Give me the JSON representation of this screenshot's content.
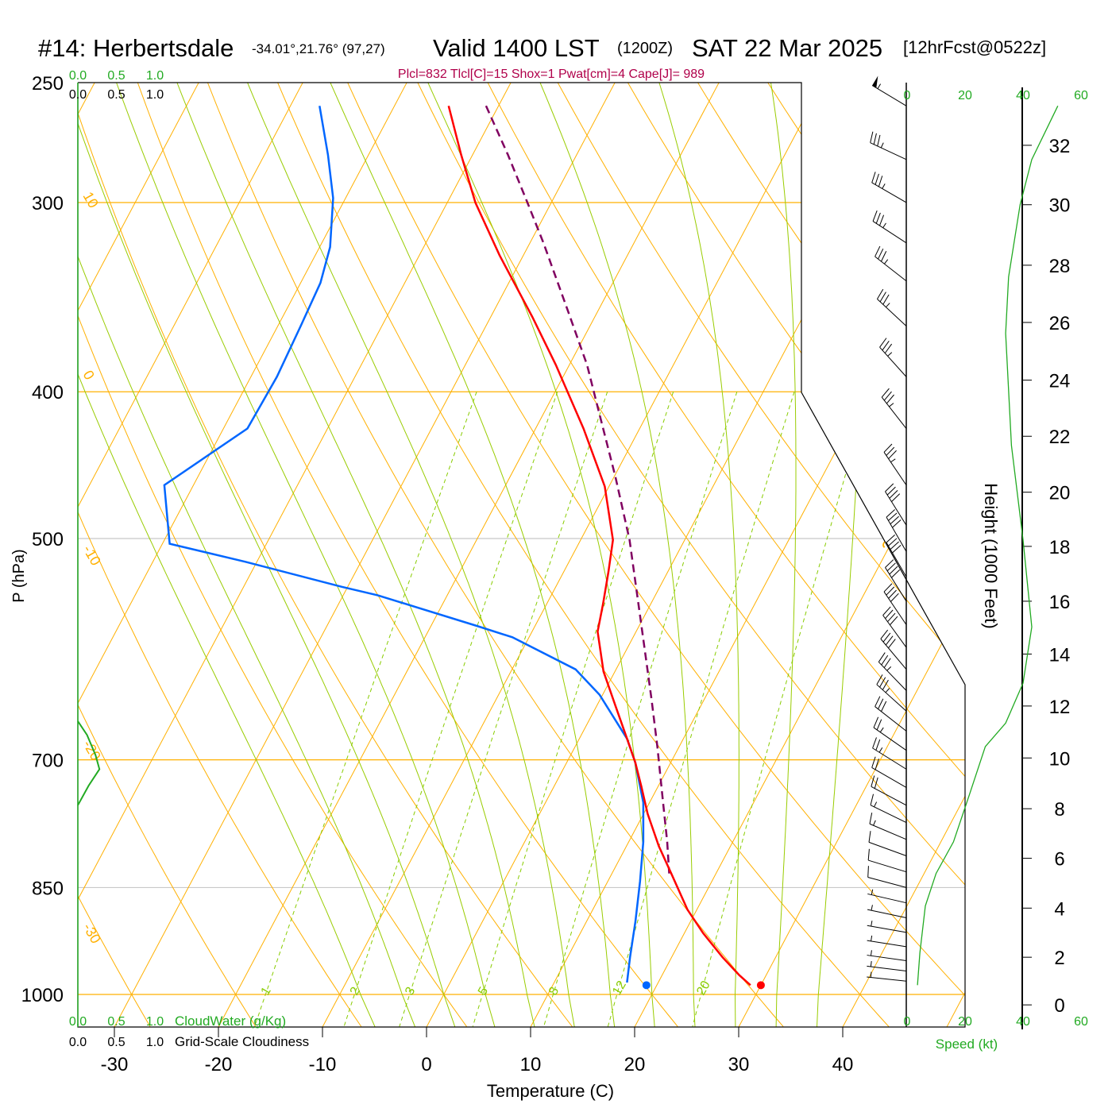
{
  "title": {
    "station": "#14: Herbertsdale",
    "coords": "-34.01°,21.76° (97,27)",
    "valid": "Valid 1400 LST",
    "utc": "(1200Z)",
    "date": "SAT 22 Mar 2025",
    "forecast": "[12hrFcst@0522z]"
  },
  "indices": "Plcl=832 Tlcl[C]=15 Shox=1 Pwat[cm]=4 Cape[J]= 989",
  "colors": {
    "temperature": "#ff0000",
    "dewpoint": "#0066ff",
    "parcel": "#800060",
    "isotherm": "#ffb000",
    "moist_adiabat": "#99cc00",
    "mixing_ratio": "#88cc00",
    "speed": "#22aa22",
    "cloud": "#22aa22"
  },
  "chart_data": {
    "type": "line",
    "title": "#14: Herbertsdale Valid 1400 LST (1200Z) SAT 22 Mar 2025",
    "xlabel": "Temperature (C)",
    "ylabel": "P (hPa)",
    "y2label": "Height (1000 Feet)",
    "speed_label": "Speed (kt)",
    "cloudwater_label": "CloudWater (g/Kg)",
    "cloudiness_label": "Grid-Scale Cloudiness",
    "pressure_range": [
      250,
      1050
    ],
    "temperature_range": [
      -34,
      52
    ],
    "pressure_ticks": [
      250,
      300,
      400,
      500,
      700,
      850,
      1000
    ],
    "temperature_ticks": [
      -30,
      -20,
      -10,
      0,
      10,
      20,
      30,
      40
    ],
    "cloud_ticks": [
      "0.0",
      "0.5",
      "1.0"
    ],
    "speed_ticks": [
      "0",
      "20",
      "40",
      "60"
    ],
    "height_ticks": [
      {
        "label": "32",
        "p": 275
      },
      {
        "label": "30",
        "p": 301
      },
      {
        "label": "28",
        "p": 330
      },
      {
        "label": "26",
        "p": 360
      },
      {
        "label": "24",
        "p": 393
      },
      {
        "label": "22",
        "p": 428
      },
      {
        "label": "20",
        "p": 466
      },
      {
        "label": "18",
        "p": 506
      },
      {
        "label": "16",
        "p": 550
      },
      {
        "label": "14",
        "p": 596
      },
      {
        "label": "12",
        "p": 645
      },
      {
        "label": "10",
        "p": 698
      },
      {
        "label": "8",
        "p": 754
      },
      {
        "label": "6",
        "p": 813
      },
      {
        "label": "4",
        "p": 877
      },
      {
        "label": "2",
        "p": 945
      },
      {
        "label": "0",
        "p": 1016
      }
    ],
    "isotherm_labels": [
      {
        "label": "0",
        "T": 0,
        "p": 327
      },
      {
        "label": "10",
        "T": 10,
        "p": 425
      },
      {
        "label": "20",
        "T": 20,
        "p": 502
      },
      {
        "label": "30",
        "T": 30,
        "p": 575
      }
    ],
    "dry_adiabat_labels": [
      {
        "label": "10",
        "p": 298
      },
      {
        "label": "0",
        "p": 391
      },
      {
        "label": "-10",
        "p": 510
      },
      {
        "label": "-20",
        "p": 686
      },
      {
        "label": "-30",
        "p": 906
      }
    ],
    "mixing_ratio_labels": [
      "1",
      "2",
      "3",
      "5",
      "8",
      "12",
      "20"
    ],
    "series": [
      {
        "name": "Temperature",
        "points": [
          [
            259,
            -44.8
          ],
          [
            279,
            -41.1
          ],
          [
            300,
            -37.3
          ],
          [
            325,
            -32.3
          ],
          [
            357,
            -26.0
          ],
          [
            384,
            -21.3
          ],
          [
            423,
            -15.4
          ],
          [
            462,
            -10.4
          ],
          [
            501,
            -6.9
          ],
          [
            526,
            -5.7
          ],
          [
            552,
            -4.6
          ],
          [
            576,
            -3.7
          ],
          [
            612,
            -1.1
          ],
          [
            646,
            1.9
          ],
          [
            678,
            4.6
          ],
          [
            703,
            6.6
          ],
          [
            729,
            8.4
          ],
          [
            760,
            10.4
          ],
          [
            798,
            13.1
          ],
          [
            832,
            15.7
          ],
          [
            879,
            19.1
          ],
          [
            911,
            21.8
          ],
          [
            945,
            24.9
          ],
          [
            971,
            27.4
          ],
          [
            986,
            29.0
          ]
        ]
      },
      {
        "name": "Dewpoint",
        "points": [
          [
            259,
            -57.2
          ],
          [
            279,
            -53.9
          ],
          [
            298,
            -51.2
          ],
          [
            321,
            -49.0
          ],
          [
            339,
            -48.1
          ],
          [
            362,
            -47.8
          ],
          [
            391,
            -47.5
          ],
          [
            423,
            -47.7
          ],
          [
            461,
            -52.8
          ],
          [
            504,
            -49.3
          ],
          [
            518,
            -41.1
          ],
          [
            538,
            -30.6
          ],
          [
            545,
            -26.7
          ],
          [
            571,
            -15.6
          ],
          [
            581,
            -11.6
          ],
          [
            610,
            -3.9
          ],
          [
            634,
            -0.3
          ],
          [
            678,
            4.6
          ],
          [
            703,
            6.6
          ],
          [
            747,
            9.4
          ],
          [
            793,
            11.4
          ],
          [
            842,
            13.1
          ],
          [
            895,
            14.7
          ],
          [
            945,
            16.0
          ],
          [
            982,
            17.0
          ]
        ]
      },
      {
        "name": "Parcel",
        "points": [
          [
            259,
            -41.2
          ],
          [
            279,
            -36.6
          ],
          [
            300,
            -32.3
          ],
          [
            319,
            -28.7
          ],
          [
            353,
            -23.0
          ],
          [
            384,
            -18.3
          ],
          [
            413,
            -14.7
          ],
          [
            455,
            -9.9
          ],
          [
            501,
            -5.3
          ],
          [
            572,
            0.3
          ],
          [
            638,
            4.9
          ],
          [
            686,
            7.9
          ],
          [
            747,
            11.3
          ],
          [
            793,
            13.7
          ],
          [
            832,
            15.5
          ]
        ]
      },
      {
        "name": "Wind Speed (kt)",
        "points": [
          [
            259,
            52
          ],
          [
            281,
            43
          ],
          [
            301,
            39
          ],
          [
            336,
            35
          ],
          [
            366,
            34
          ],
          [
            434,
            36
          ],
          [
            501,
            40
          ],
          [
            572,
            43
          ],
          [
            623,
            40
          ],
          [
            662,
            34
          ],
          [
            686,
            27
          ],
          [
            738,
            21.5
          ],
          [
            793,
            16
          ],
          [
            832,
            10
          ],
          [
            874,
            6.3
          ],
          [
            939,
            4.4
          ],
          [
            986,
            3.6
          ]
        ]
      },
      {
        "name": "Cloud Water (g/Kg)",
        "points": [
          [
            660,
            0
          ],
          [
            674,
            0.12
          ],
          [
            695,
            0.23
          ],
          [
            710,
            0.28
          ],
          [
            728,
            0.14
          ],
          [
            750,
            0
          ]
        ]
      }
    ],
    "surface": {
      "p": 986,
      "temperature": 30,
      "dewpoint": 19
    },
    "wind_barbs": [
      {
        "p": 259,
        "dir": 301,
        "spd": 55
      },
      {
        "p": 281,
        "dir": 295,
        "spd": 35
      },
      {
        "p": 300,
        "dir": 300,
        "spd": 35
      },
      {
        "p": 319,
        "dir": 303,
        "spd": 35
      },
      {
        "p": 338,
        "dir": 308,
        "spd": 35
      },
      {
        "p": 362,
        "dir": 313,
        "spd": 35
      },
      {
        "p": 391,
        "dir": 318,
        "spd": 35
      },
      {
        "p": 423,
        "dir": 322,
        "spd": 35
      },
      {
        "p": 461,
        "dir": 326,
        "spd": 35
      },
      {
        "p": 490,
        "dir": 328,
        "spd": 40
      },
      {
        "p": 510,
        "dir": 330,
        "spd": 40
      },
      {
        "p": 530,
        "dir": 330,
        "spd": 40
      },
      {
        "p": 550,
        "dir": 328,
        "spd": 40
      },
      {
        "p": 570,
        "dir": 326,
        "spd": 40
      },
      {
        "p": 590,
        "dir": 324,
        "spd": 40
      },
      {
        "p": 610,
        "dir": 320,
        "spd": 40
      },
      {
        "p": 630,
        "dir": 316,
        "spd": 35
      },
      {
        "p": 650,
        "dir": 312,
        "spd": 35
      },
      {
        "p": 670,
        "dir": 308,
        "spd": 30
      },
      {
        "p": 690,
        "dir": 305,
        "spd": 25
      },
      {
        "p": 710,
        "dir": 302,
        "spd": 25
      },
      {
        "p": 730,
        "dir": 300,
        "spd": 20
      },
      {
        "p": 750,
        "dir": 298,
        "spd": 20
      },
      {
        "p": 770,
        "dir": 296,
        "spd": 15
      },
      {
        "p": 790,
        "dir": 293,
        "spd": 15
      },
      {
        "p": 810,
        "dir": 290,
        "spd": 10
      },
      {
        "p": 830,
        "dir": 287,
        "spd": 10
      },
      {
        "p": 850,
        "dir": 285,
        "spd": 10
      },
      {
        "p": 870,
        "dir": 283,
        "spd": 5
      },
      {
        "p": 890,
        "dir": 282,
        "spd": 5
      },
      {
        "p": 910,
        "dir": 280,
        "spd": 5
      },
      {
        "p": 930,
        "dir": 279,
        "spd": 5
      },
      {
        "p": 950,
        "dir": 278,
        "spd": 5
      },
      {
        "p": 965,
        "dir": 277,
        "spd": 5
      },
      {
        "p": 980,
        "dir": 276,
        "spd": 5
      }
    ]
  }
}
